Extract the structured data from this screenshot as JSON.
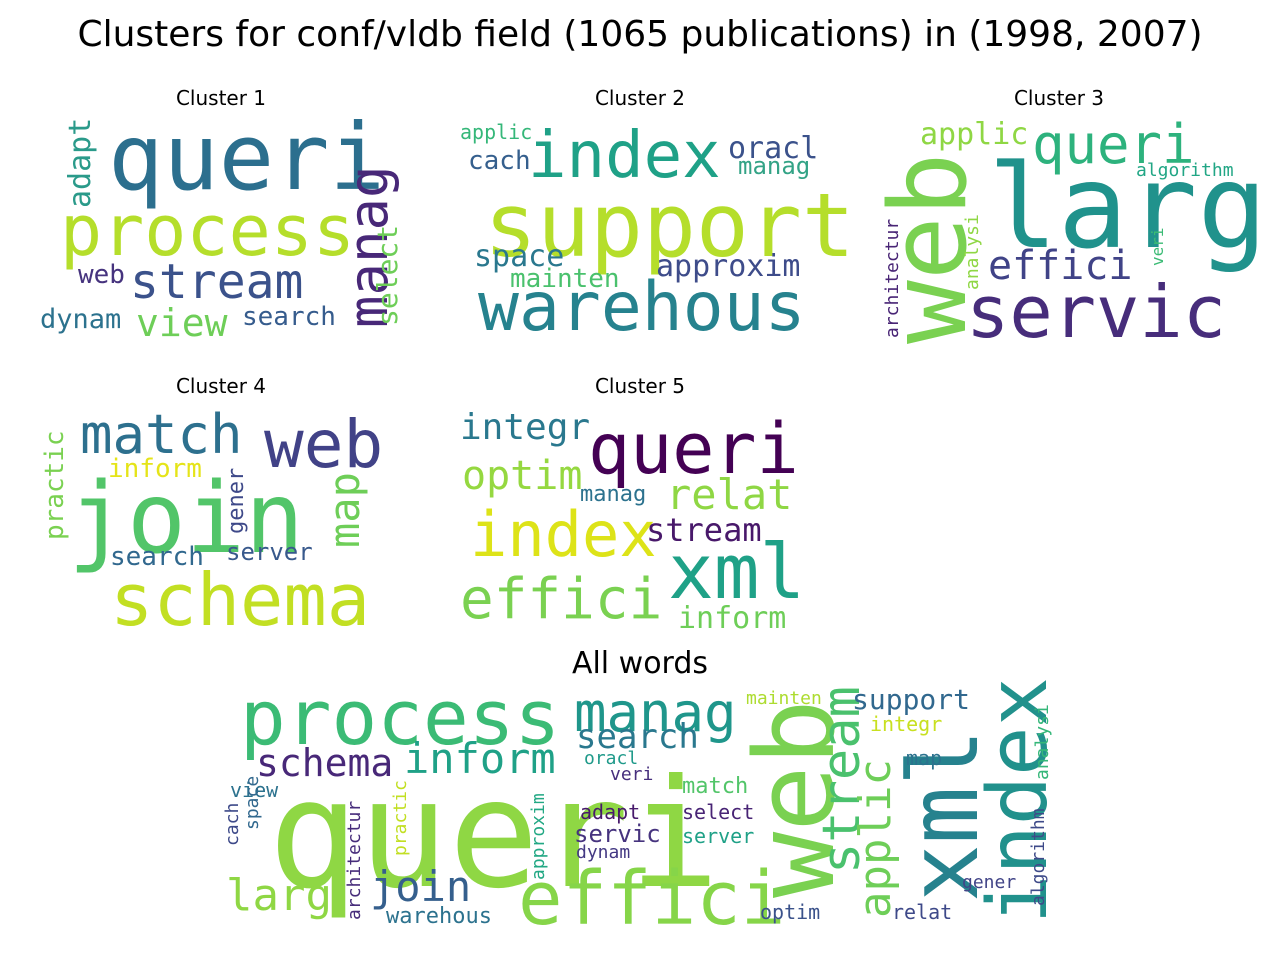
{
  "figure_title": "Clusters for conf/vldb field (1065 publications) in (1998, 2007)",
  "chart_data": {
    "type": "wordcloud",
    "clouds": [
      {
        "title": "Cluster 1",
        "words": [
          {
            "text": "queri",
            "color": "#2c6f8e"
          },
          {
            "text": "process",
            "color": "#b5de2b"
          },
          {
            "text": "stream",
            "color": "#3b528b"
          },
          {
            "text": "manag",
            "color": "#482878"
          },
          {
            "text": "view",
            "color": "#6ece58"
          },
          {
            "text": "adapt",
            "color": "#2a9a8a"
          },
          {
            "text": "select",
            "color": "#6ece58"
          },
          {
            "text": "web",
            "color": "#46337e"
          },
          {
            "text": "dynam",
            "color": "#2c728e"
          },
          {
            "text": "search",
            "color": "#365c8d"
          }
        ]
      },
      {
        "title": "Cluster 2",
        "words": [
          {
            "text": "index",
            "color": "#1fa187"
          },
          {
            "text": "support",
            "color": "#b5de2b"
          },
          {
            "text": "warehous",
            "color": "#26828e"
          },
          {
            "text": "oracl",
            "color": "#3b528b"
          },
          {
            "text": "manag",
            "color": "#33a386"
          },
          {
            "text": "applic",
            "color": "#35b779"
          },
          {
            "text": "cach",
            "color": "#355f8d"
          },
          {
            "text": "space",
            "color": "#2a788e"
          },
          {
            "text": "mainten",
            "color": "#4ac16d"
          },
          {
            "text": "approxim",
            "color": "#3e4c8a"
          }
        ]
      },
      {
        "title": "Cluster 3",
        "words": [
          {
            "text": "larg",
            "color": "#20928c"
          },
          {
            "text": "web",
            "color": "#7ad151"
          },
          {
            "text": "servic",
            "color": "#472d7b"
          },
          {
            "text": "queri",
            "color": "#2db27d"
          },
          {
            "text": "effici",
            "color": "#404387"
          },
          {
            "text": "applic",
            "color": "#8fd744"
          },
          {
            "text": "algorithm",
            "color": "#21a685"
          },
          {
            "text": "architectur",
            "color": "#482475"
          },
          {
            "text": "analysi",
            "color": "#8fd744"
          },
          {
            "text": "veri",
            "color": "#3bbb75"
          }
        ]
      },
      {
        "title": "Cluster 4",
        "words": [
          {
            "text": "join",
            "color": "#52c569"
          },
          {
            "text": "schema",
            "color": "#c2df23"
          },
          {
            "text": "web",
            "color": "#414287"
          },
          {
            "text": "match",
            "color": "#2d708e"
          },
          {
            "text": "map",
            "color": "#6ece58"
          },
          {
            "text": "practic",
            "color": "#7ad151"
          },
          {
            "text": "inform",
            "color": "#e5e419"
          },
          {
            "text": "gener",
            "color": "#3e4989"
          },
          {
            "text": "search",
            "color": "#31688e"
          },
          {
            "text": "server",
            "color": "#38598c"
          }
        ]
      },
      {
        "title": "Cluster 5",
        "words": [
          {
            "text": "queri",
            "color": "#440154"
          },
          {
            "text": "xml",
            "color": "#1fa187"
          },
          {
            "text": "index",
            "color": "#dde318"
          },
          {
            "text": "effici",
            "color": "#7ad151"
          },
          {
            "text": "relat",
            "color": "#8fd744"
          },
          {
            "text": "optim",
            "color": "#95d840"
          },
          {
            "text": "integr",
            "color": "#2a788e"
          },
          {
            "text": "stream",
            "color": "#48186a"
          },
          {
            "text": "inform",
            "color": "#6ece58"
          },
          {
            "text": "manag",
            "color": "#2c728e"
          }
        ]
      },
      {
        "title": "All words",
        "words": [
          {
            "text": "queri",
            "color": "#8fd744"
          },
          {
            "text": "web",
            "color": "#7ad151"
          },
          {
            "text": "process",
            "color": "#3bbb75"
          },
          {
            "text": "index",
            "color": "#21918c"
          },
          {
            "text": "xml",
            "color": "#26828e"
          },
          {
            "text": "effici",
            "color": "#86d549"
          },
          {
            "text": "stream",
            "color": "#4ac16d"
          },
          {
            "text": "manag",
            "color": "#1f968b"
          },
          {
            "text": "inform",
            "color": "#1fa187"
          },
          {
            "text": "schema",
            "color": "#482878"
          },
          {
            "text": "applic",
            "color": "#6ece58"
          },
          {
            "text": "join",
            "color": "#355f8d"
          },
          {
            "text": "larg",
            "color": "#8fd744"
          },
          {
            "text": "search",
            "color": "#2a788e"
          },
          {
            "text": "support",
            "color": "#31688e"
          },
          {
            "text": "warehous",
            "color": "#2c728e"
          },
          {
            "text": "match",
            "color": "#52c569"
          },
          {
            "text": "servic",
            "color": "#46337e"
          },
          {
            "text": "select",
            "color": "#482475"
          },
          {
            "text": "server",
            "color": "#1fa187"
          },
          {
            "text": "algorithm",
            "color": "#3e4a89"
          },
          {
            "text": "analysi",
            "color": "#35b779"
          },
          {
            "text": "optim",
            "color": "#3b528b"
          },
          {
            "text": "relat",
            "color": "#3e4989"
          },
          {
            "text": "mainten",
            "color": "#addc30"
          },
          {
            "text": "integr",
            "color": "#c8e020"
          },
          {
            "text": "map",
            "color": "#2c728e"
          },
          {
            "text": "oracl",
            "color": "#1f9a8a"
          },
          {
            "text": "veri",
            "color": "#472f7d"
          },
          {
            "text": "adapt",
            "color": "#481a6c"
          },
          {
            "text": "dynam",
            "color": "#443983"
          },
          {
            "text": "view",
            "color": "#2c728e"
          },
          {
            "text": "cach",
            "color": "#3e4a89"
          },
          {
            "text": "space",
            "color": "#31688e"
          },
          {
            "text": "architectur",
            "color": "#472d7b"
          },
          {
            "text": "practic",
            "color": "#c2df23"
          },
          {
            "text": "approxim",
            "color": "#22a884"
          },
          {
            "text": "gener",
            "color": "#414487"
          }
        ]
      }
    ]
  }
}
